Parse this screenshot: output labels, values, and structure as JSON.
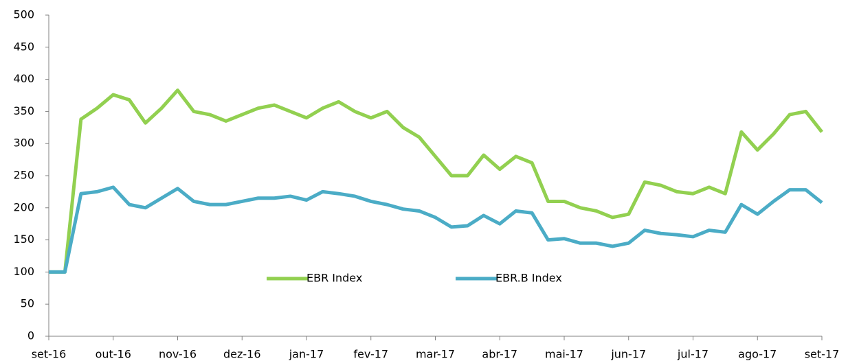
{
  "chart_data": {
    "type": "line",
    "categories": [
      "set-16",
      null,
      null,
      null,
      "out-16",
      null,
      null,
      null,
      "nov-16",
      null,
      null,
      null,
      "dez-16",
      null,
      null,
      null,
      "jan-17",
      null,
      null,
      null,
      "fev-17",
      null,
      null,
      null,
      "mar-17",
      null,
      null,
      null,
      "abr-17",
      null,
      null,
      null,
      "mai-17",
      null,
      null,
      null,
      "jun-17",
      null,
      null,
      null,
      "jul-17",
      null,
      null,
      null,
      "ago-17",
      null,
      null,
      null,
      "set-17"
    ],
    "series": [
      {
        "name": "EBR Index",
        "color": "#92d050",
        "values": [
          100,
          100,
          338,
          355,
          376,
          368,
          332,
          355,
          383,
          350,
          345,
          335,
          345,
          355,
          360,
          350,
          340,
          355,
          365,
          350,
          340,
          350,
          325,
          310,
          280,
          250,
          250,
          282,
          260,
          280,
          270,
          210,
          210,
          200,
          195,
          185,
          190,
          240,
          235,
          225,
          222,
          232,
          222,
          318,
          290,
          315,
          345,
          350,
          318
        ]
      },
      {
        "name": "EBR.B Index",
        "color": "#4bacc6",
        "values": [
          100,
          100,
          222,
          225,
          232,
          205,
          200,
          215,
          230,
          210,
          205,
          205,
          210,
          215,
          215,
          218,
          212,
          225,
          222,
          218,
          210,
          205,
          198,
          195,
          185,
          170,
          172,
          188,
          175,
          195,
          192,
          150,
          152,
          145,
          145,
          140,
          145,
          165,
          160,
          158,
          155,
          165,
          162,
          205,
          190,
          210,
          228,
          228,
          208
        ]
      }
    ],
    "ylim": [
      0,
      500
    ],
    "yticks": [
      0,
      50,
      100,
      150,
      200,
      250,
      300,
      350,
      400,
      450,
      500
    ],
    "grid": false,
    "legend": "center"
  }
}
